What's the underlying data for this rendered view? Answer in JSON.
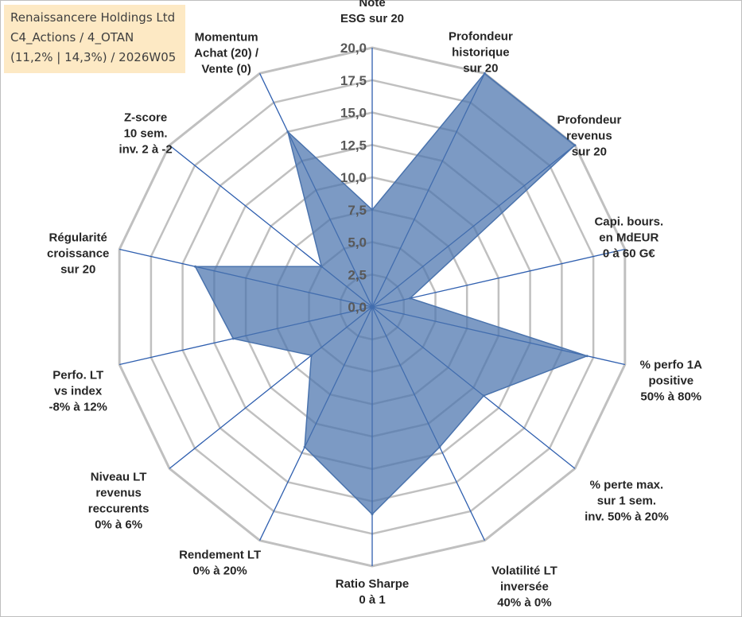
{
  "info": {
    "line1": "Renaissancere Holdings Ltd",
    "line2": "C4_Actions / 4_OTAN",
    "line3": "(11,2% | 14,3%) / 2026W05"
  },
  "colors": {
    "grid": "#c0c0c0",
    "spoke": "#2f5faf",
    "fill": "#4a73ad",
    "stroke": "#4a73ad",
    "info_bg": "#fde9c4"
  },
  "chart_data": {
    "type": "radar",
    "title": "",
    "rlim": [
      0,
      20
    ],
    "r_ticks": [
      "0,0",
      "2,5",
      "5,0",
      "7,5",
      "10,0",
      "12,5",
      "15,0",
      "17,5",
      "20,0"
    ],
    "grid": true,
    "axes": [
      {
        "label_lines": [
          "Note",
          "ESG sur 20"
        ],
        "value": 7.5
      },
      {
        "label_lines": [
          "Profondeur",
          "historique",
          "sur 20"
        ],
        "value": 20
      },
      {
        "label_lines": [
          "Profondeur",
          "revenus",
          "sur 20"
        ],
        "value": 20
      },
      {
        "label_lines": [
          "Capi. bours.",
          "en MdEUR",
          "0 à 60 G€"
        ],
        "value": 3
      },
      {
        "label_lines": [
          "% perfo 1A",
          "positive",
          "50% à 80%"
        ],
        "value": 17
      },
      {
        "label_lines": [
          "% perte max.",
          "sur 1 sem.",
          "inv. 50% à 20%"
        ],
        "value": 11
      },
      {
        "label_lines": [
          "Volatilité LT",
          "inversée",
          "40% à 0%"
        ],
        "value": 12
      },
      {
        "label_lines": [
          "Ratio Sharpe",
          "0 à 1"
        ],
        "value": 16
      },
      {
        "label_lines": [
          "Rendement LT",
          "0% à 20%"
        ],
        "value": 12
      },
      {
        "label_lines": [
          "Niveau LT",
          "revenus",
          "reccurents",
          "0% à 6%"
        ],
        "value": 6
      },
      {
        "label_lines": [
          "Perfo. LT",
          "vs index",
          "-8% à 12%"
        ],
        "value": 11
      },
      {
        "label_lines": [
          "Régularité",
          "croissance",
          "sur 20"
        ],
        "value": 14
      },
      {
        "label_lines": [
          "Z-score",
          "10 sem.",
          "inv. 2 à -2"
        ],
        "value": 5
      },
      {
        "label_lines": [
          "Momentum",
          "Achat (20) /",
          "Vente (0)"
        ],
        "value": 15
      }
    ]
  }
}
